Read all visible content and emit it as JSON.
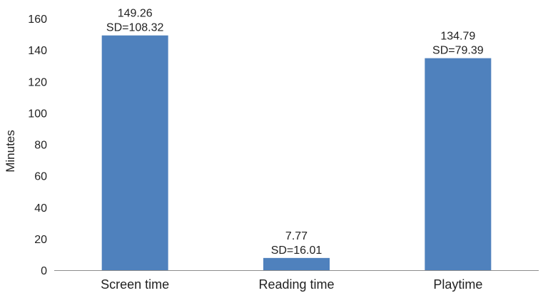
{
  "chart_data": {
    "type": "bar",
    "title": "",
    "xlabel": "",
    "ylabel": "Minutes",
    "ylim": [
      0,
      160
    ],
    "yticks": [
      "0",
      "20",
      "40",
      "60",
      "80",
      "100",
      "120",
      "140",
      "160"
    ],
    "grid": false,
    "categories": [
      "Screen time",
      "Reading time",
      "Playtime"
    ],
    "values": [
      149.26,
      7.77,
      134.79
    ],
    "data_labels": [
      "149.26",
      "7.77",
      "134.79"
    ],
    "sd_labels": [
      "SD=108.32",
      "SD=16.01",
      "SD=79.39"
    ],
    "bar_color": "#4f81bd",
    "axis_color": "#8c8c8c"
  }
}
